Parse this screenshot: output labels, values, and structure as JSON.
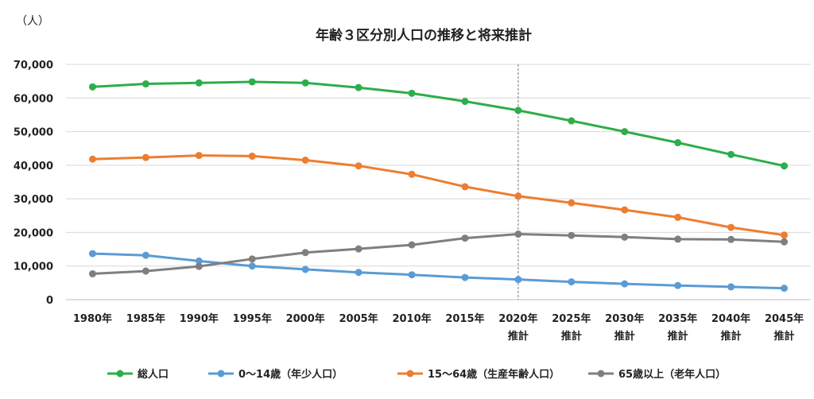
{
  "chart_data": {
    "type": "line",
    "title": "年齢３区分別人口の推移と将来推計",
    "unit_label": "（人）",
    "categories": [
      [
        "1980年"
      ],
      [
        "1985年"
      ],
      [
        "1990年"
      ],
      [
        "1995年"
      ],
      [
        "2000年"
      ],
      [
        "2005年"
      ],
      [
        "2010年"
      ],
      [
        "2015年"
      ],
      [
        "2020年",
        "推計"
      ],
      [
        "2025年",
        "推計"
      ],
      [
        "2030年",
        "推計"
      ],
      [
        "2035年",
        "推計"
      ],
      [
        "2040年",
        "推計"
      ],
      [
        "2045年",
        "推計"
      ]
    ],
    "ylim": [
      0,
      70000
    ],
    "yticks": [
      "0",
      "10,000",
      "20,000",
      "30,000",
      "40,000",
      "50,000",
      "60,000",
      "70,000"
    ],
    "ytick_values": [
      0,
      10000,
      20000,
      30000,
      40000,
      50000,
      60000,
      70000
    ],
    "grid": true,
    "projection_divider_at": "2020年",
    "legend_position": "bottom",
    "series": [
      {
        "name": "総人口",
        "color": "#2ead4b",
        "values": [
          63300,
          64200,
          64500,
          64800,
          64500,
          63100,
          61400,
          59000,
          56300,
          53200,
          50000,
          46700,
          43200,
          39800
        ]
      },
      {
        "name": "0〜14歳（年少人口）",
        "color": "#5b9bd5",
        "values": [
          13700,
          13200,
          11500,
          10000,
          9000,
          8100,
          7400,
          6600,
          6000,
          5300,
          4700,
          4200,
          3800,
          3400
        ]
      },
      {
        "name": "15〜64歳（生産年齢人口）",
        "color": "#ed7d31",
        "values": [
          41800,
          42300,
          42900,
          42700,
          41500,
          39800,
          37300,
          33600,
          30800,
          28800,
          26700,
          24500,
          21500,
          19200
        ]
      },
      {
        "name": "65歳以上（老年人口）",
        "color": "#7f7f7f",
        "values": [
          7700,
          8500,
          9900,
          12100,
          14000,
          15100,
          16300,
          18300,
          19500,
          19100,
          18600,
          18000,
          17900,
          17200
        ]
      }
    ]
  }
}
